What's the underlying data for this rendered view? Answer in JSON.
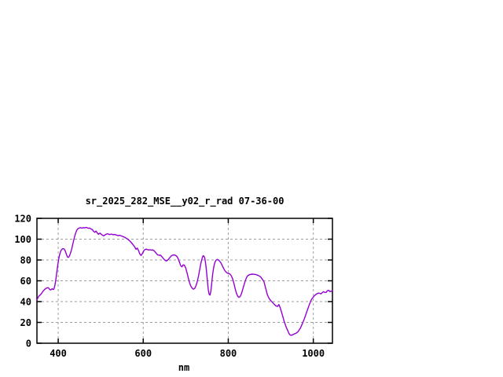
{
  "window": {
    "background": "#ffffff"
  },
  "chart_data": {
    "type": "line",
    "title": "sr_2025_282_MSE__y02_r_rad 07-36-00",
    "xlabel": "nm",
    "ylabel": "",
    "xlim": [
      350,
      1045
    ],
    "ylim": [
      0,
      120
    ],
    "xticks": [
      400,
      600,
      800,
      1000
    ],
    "yticks": [
      0,
      20,
      40,
      60,
      80,
      100,
      120
    ],
    "grid": true,
    "grid_style": "dashed",
    "legend_position": "none",
    "line_color": "#9400D3",
    "grid_color": "#9e9e9e",
    "border_color": "#000000",
    "series": [
      {
        "name": "sr_2025_282_MSE__y02_r_rad",
        "x": [
          350,
          352,
          354,
          356,
          358,
          360,
          362,
          364,
          366,
          368,
          370,
          372,
          374,
          376,
          378,
          380,
          382,
          384,
          386,
          388,
          390,
          392,
          394,
          396,
          398,
          400,
          402,
          404,
          406,
          408,
          410,
          412,
          414,
          416,
          418,
          420,
          422,
          424,
          426,
          428,
          430,
          432,
          434,
          436,
          438,
          440,
          442,
          444,
          446,
          448,
          450,
          453,
          456,
          459,
          462,
          465,
          468,
          471,
          474,
          477,
          480,
          483,
          486,
          489,
          492,
          495,
          498,
          501,
          504,
          507,
          510,
          513,
          517,
          521,
          525,
          529,
          533,
          537,
          541,
          545,
          549,
          553,
          557,
          561,
          565,
          569,
          573,
          577,
          580,
          583,
          586,
          589,
          592,
          595,
          598,
          601,
          604,
          607,
          610,
          613,
          616,
          619,
          622,
          625,
          628,
          631,
          634,
          637,
          640,
          643,
          646,
          649,
          652,
          655,
          658,
          661,
          664,
          667,
          670,
          673,
          676,
          679,
          682,
          685,
          688,
          691,
          694,
          697,
          700,
          703,
          706,
          709,
          712,
          715,
          718,
          721,
          724,
          727,
          730,
          733,
          736,
          739,
          741,
          743,
          745,
          747,
          749,
          751,
          753,
          755,
          757,
          759,
          761,
          763,
          765,
          767,
          769,
          771,
          774,
          777,
          780,
          783,
          786,
          789,
          792,
          795,
          798,
          801,
          804,
          807,
          810,
          813,
          816,
          819,
          822,
          825,
          828,
          831,
          834,
          837,
          840,
          843,
          846,
          849,
          852,
          856,
          860,
          864,
          868,
          872,
          876,
          880,
          884,
          888,
          892,
          896,
          900,
          904,
          908,
          912,
          916,
          919,
          922,
          925,
          928,
          931,
          934,
          937,
          940,
          943,
          946,
          949,
          952,
          955,
          958,
          961,
          964,
          967,
          970,
          973,
          976,
          979,
          982,
          985,
          988,
          991,
          994,
          997,
          1000,
          1003,
          1006,
          1009,
          1012,
          1015,
          1018,
          1021,
          1024,
          1027,
          1030,
          1033,
          1036,
          1039,
          1042,
          1045
        ],
        "y": [
          41.5,
          43.5,
          45,
          45.8,
          46.5,
          47.5,
          48.5,
          49.8,
          50.8,
          51.6,
          52.2,
          52.8,
          53.2,
          53.4,
          52.8,
          51.8,
          51.2,
          51.8,
          52.4,
          51.6,
          52,
          55,
          60,
          66,
          72.5,
          78,
          82.5,
          86,
          88.5,
          90,
          90.7,
          90.9,
          90.5,
          89.3,
          87,
          84.5,
          82.8,
          82.5,
          83.5,
          85.5,
          88,
          91,
          94.5,
          98,
          101.5,
          104.5,
          107,
          108.8,
          109.8,
          110.4,
          110.8,
          111,
          110.6,
          111.1,
          110.8,
          111.3,
          111,
          110.4,
          110.7,
          109.8,
          109.3,
          107.6,
          106.6,
          107.8,
          106,
          104.6,
          105.8,
          104.8,
          103.8,
          103.2,
          104.1,
          104.8,
          105.1,
          104.4,
          104.9,
          104.2,
          104.5,
          103.9,
          103.4,
          103.7,
          103,
          102.4,
          101.6,
          100.7,
          99.5,
          98,
          96.2,
          94.2,
          92.5,
          90.3,
          91.4,
          89,
          85.8,
          84.3,
          86.3,
          88.7,
          90,
          90.4,
          90,
          89.6,
          89.9,
          89.4,
          89.7,
          89,
          87.8,
          86.2,
          84.9,
          84.5,
          84.7,
          83.6,
          82.1,
          80.6,
          79.5,
          79.1,
          80.1,
          81.6,
          83.1,
          84.2,
          84.7,
          84.9,
          84.4,
          83.5,
          81.4,
          78.2,
          74.6,
          73.4,
          75.4,
          74.9,
          72.1,
          67.6,
          62.6,
          58.1,
          54.9,
          52.9,
          51.9,
          52.6,
          55.1,
          59.2,
          64.6,
          71.1,
          77.6,
          82.4,
          84.1,
          83.7,
          81.2,
          75.6,
          68.1,
          59.6,
          51.6,
          47,
          46.3,
          50.1,
          57.6,
          65.1,
          71.1,
          75.4,
          78.1,
          79.8,
          80.5,
          80,
          78.8,
          76.9,
          74.4,
          71.9,
          69.8,
          68.3,
          67.3,
          67,
          66.5,
          64.9,
          62.1,
          57.9,
          52.9,
          48.3,
          45.3,
          44,
          44.9,
          47.6,
          51.6,
          56.1,
          60.1,
          63.1,
          64.9,
          65.7,
          66.1,
          66.4,
          66.3,
          66.1,
          65.5,
          64.8,
          63.7,
          61.6,
          59,
          52.6,
          46.6,
          43.1,
          40.8,
          39.3,
          37.4,
          35.9,
          35.4,
          37.1,
          34.2,
          30.1,
          26.1,
          21.6,
          18.1,
          14.6,
          11.9,
          9.1,
          7.8,
          7.6,
          8.3,
          8.9,
          9.3,
          10.1,
          11.1,
          12.9,
          14.9,
          17.6,
          20.6,
          23.6,
          27.1,
          30.6,
          34.1,
          37.6,
          40.6,
          42.9,
          44.4,
          45.9,
          46.9,
          47.6,
          48.2,
          47.9,
          47.5,
          48.6,
          49.5,
          48.9,
          48.8,
          50.4,
          50.9,
          49.6,
          49.9,
          50.7
        ]
      }
    ]
  }
}
